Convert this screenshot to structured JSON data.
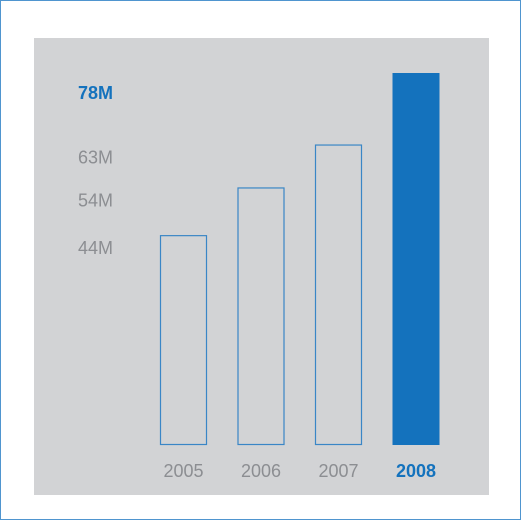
{
  "colors": {
    "frame_border": "#4f95cf",
    "panel_background": "#d2d3d5",
    "outline_bar": "#3a86c6",
    "highlight": "#1472bd",
    "label_text": "#8c8e92"
  },
  "chart_data": {
    "type": "bar",
    "categories": [
      "2005",
      "2006",
      "2007",
      "2008"
    ],
    "values": [
      44,
      54,
      63,
      78
    ],
    "value_labels": [
      "44M",
      "54M",
      "63M",
      "78M"
    ],
    "highlighted_index": 3,
    "bar_style": "outlined bars, highlighted bar filled",
    "ylim": [
      0,
      78
    ],
    "grid": false,
    "legend": "none"
  }
}
